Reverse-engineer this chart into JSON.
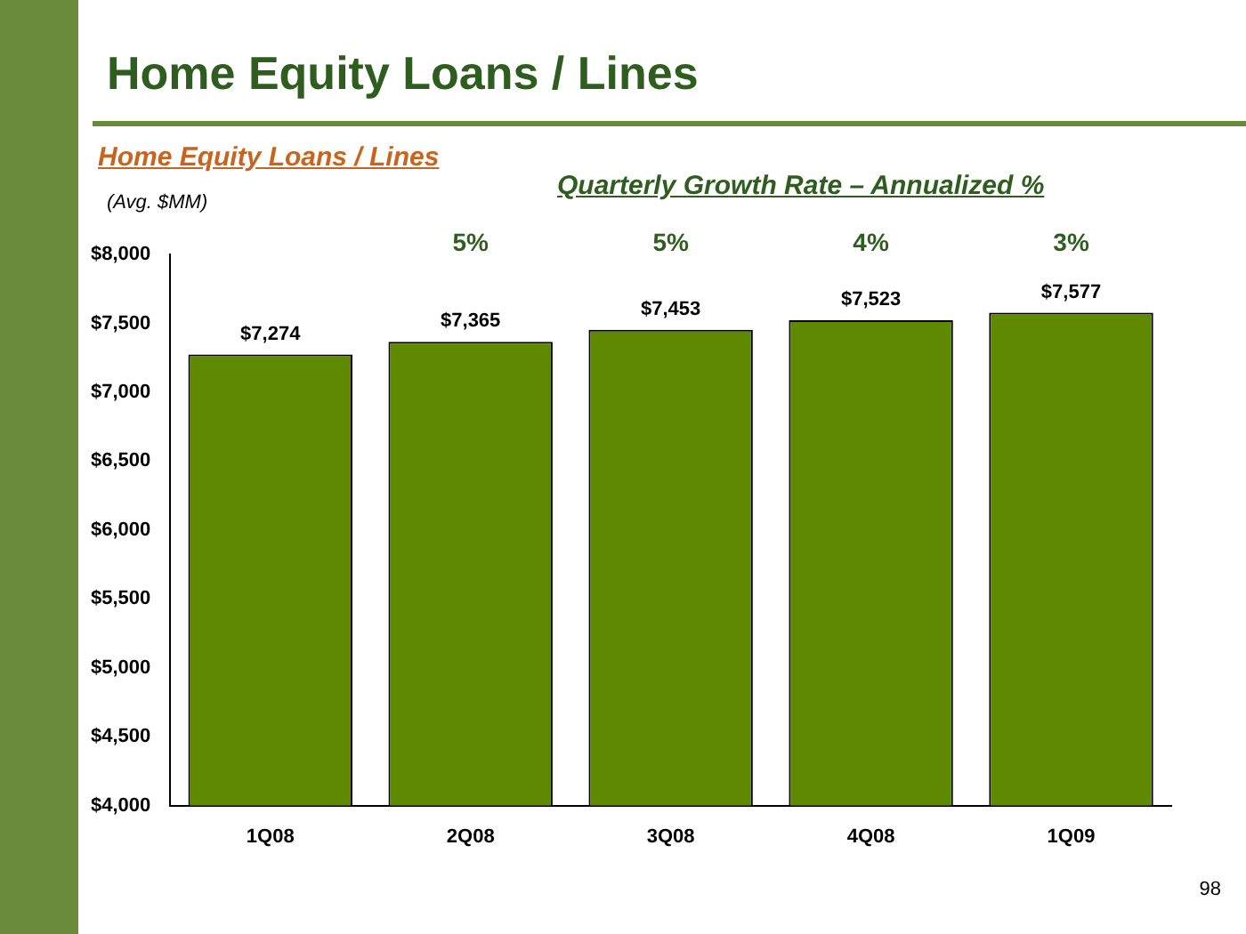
{
  "chart_data": {
    "type": "bar",
    "title": "Home Equity Loans / Lines",
    "subtitle": "Home Equity Loans / Lines",
    "ylabel": "(Avg. $MM)",
    "categories": [
      "1Q08",
      "2Q08",
      "3Q08",
      "4Q08",
      "1Q09"
    ],
    "values": [
      7274,
      7365,
      7453,
      7523,
      7577
    ],
    "color": "#5f8a00",
    "value_labels": [
      "$7,274",
      "$7,365",
      "$7,453",
      "$7,523",
      "$7,577"
    ],
    "ylim": [
      4000,
      8000
    ],
    "yticks": [
      {
        "value": 4000,
        "label": "$4,000"
      },
      {
        "value": 4500,
        "label": "$4,500"
      },
      {
        "value": 5000,
        "label": "$5,000"
      },
      {
        "value": 5500,
        "label": "$5,500"
      },
      {
        "value": 6000,
        "label": "$6,000"
      },
      {
        "value": 6500,
        "label": "$6,500"
      },
      {
        "value": 7000,
        "label": "$7,000"
      },
      {
        "value": 7500,
        "label": "$7,500"
      },
      {
        "value": 8000,
        "label": "$8,000"
      }
    ],
    "grid": false,
    "legend": false,
    "annotations": [
      "Quarterly Growth Rate – Annualized  %",
      "5%",
      "5%",
      "4%",
      "3%",
      "98"
    ]
  }
}
